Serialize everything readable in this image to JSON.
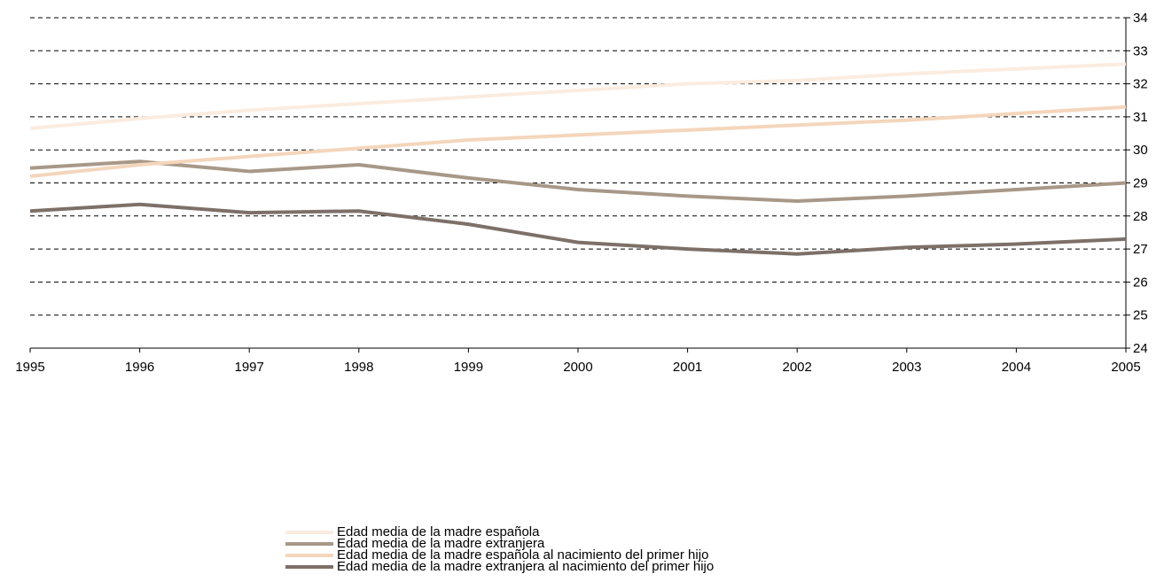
{
  "chart_data": {
    "type": "line",
    "title": "",
    "xlabel": "",
    "ylabel": "",
    "x": [
      1995,
      1996,
      1997,
      1998,
      1999,
      2000,
      2001,
      2002,
      2003,
      2004,
      2005
    ],
    "xlim": [
      1995,
      2005
    ],
    "ylim": [
      24,
      34
    ],
    "yticks": [
      24,
      25,
      26,
      27,
      28,
      29,
      30,
      31,
      32,
      33,
      34
    ],
    "y_axis_side": "right",
    "grid": "horizontal dashed",
    "legend_position": "bottom",
    "series": [
      {
        "name": "Edad media de la madre española",
        "color": "#fbece0",
        "values": [
          30.65,
          30.95,
          31.2,
          31.4,
          31.6,
          31.8,
          32.0,
          32.1,
          32.3,
          32.45,
          32.6
        ]
      },
      {
        "name": "Edad media de la madre extranjera",
        "color": "#a89888",
        "values": [
          29.45,
          29.65,
          29.35,
          29.55,
          29.15,
          28.8,
          28.6,
          28.45,
          28.6,
          28.8,
          29.0
        ]
      },
      {
        "name": "Edad media de la madre española al nacimiento del primer hijo",
        "color": "#f4d6bc",
        "values": [
          29.2,
          29.55,
          29.8,
          30.05,
          30.3,
          30.45,
          30.6,
          30.75,
          30.9,
          31.1,
          31.3
        ]
      },
      {
        "name": "Edad media de la madre extranjera al nacimiento del primer hijo",
        "color": "#7d7068",
        "values": [
          28.15,
          28.35,
          28.1,
          28.15,
          27.75,
          27.2,
          27.0,
          26.85,
          27.05,
          27.15,
          27.3
        ]
      }
    ]
  }
}
